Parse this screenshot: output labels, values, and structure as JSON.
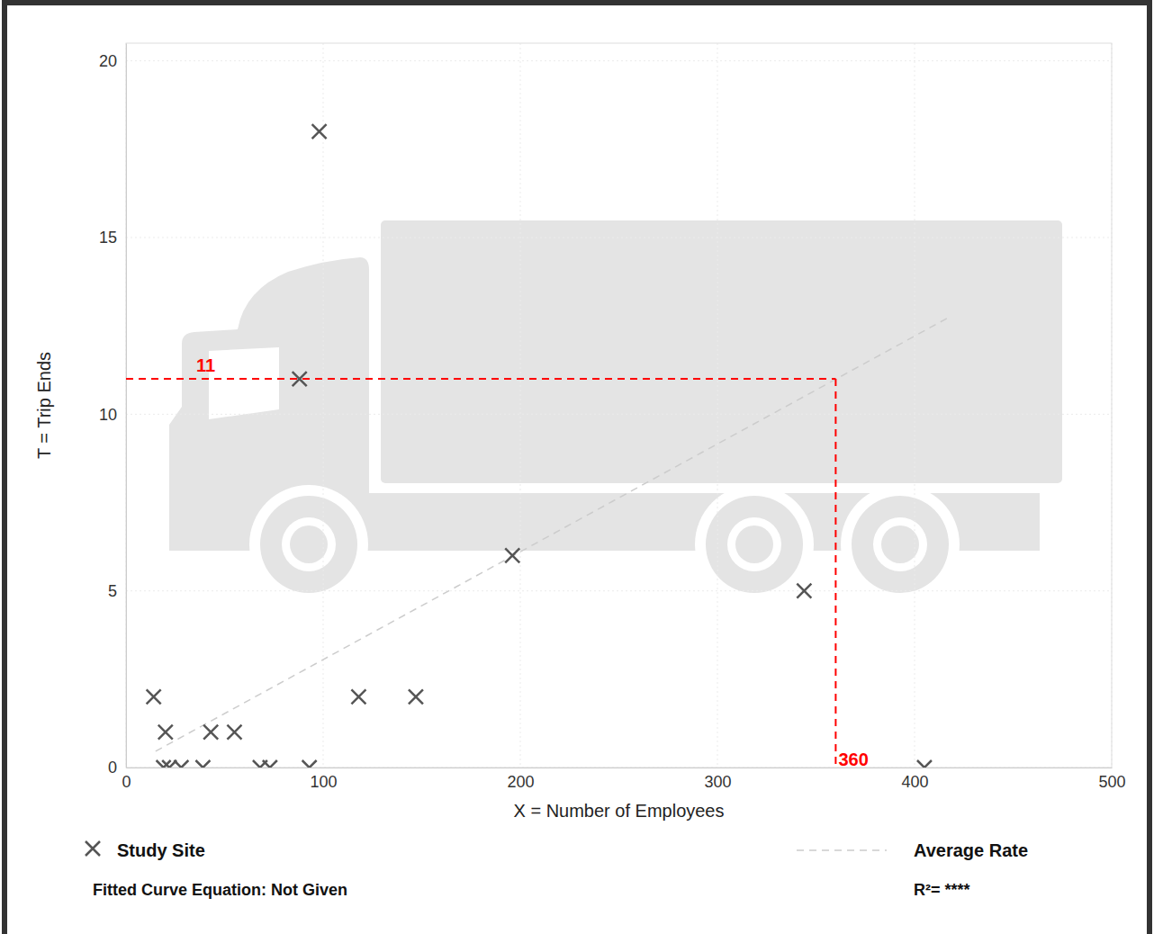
{
  "chart_data": {
    "type": "scatter",
    "x_label": "X = Number of Employees",
    "y_label": "T = Trip Ends",
    "xlim": [
      0,
      500
    ],
    "xticks": [
      0,
      100,
      200,
      300,
      400,
      500
    ],
    "ylim": [
      0,
      20.5
    ],
    "yticks": [
      0,
      5,
      10,
      15,
      20
    ],
    "grid": true,
    "legend": "bottom",
    "series": [
      {
        "name": "Study Site",
        "type": "scatter",
        "marker": "x",
        "color": "#555555",
        "x": [
          14,
          20,
          19,
          22,
          28,
          39,
          43,
          55,
          68,
          73,
          93,
          88,
          98,
          118,
          147,
          196,
          344,
          405
        ],
        "values": [
          2,
          1,
          0,
          0,
          0,
          0,
          1,
          1,
          0,
          0,
          0,
          11,
          18,
          2,
          2,
          6,
          5,
          0
        ]
      },
      {
        "name": "Average Rate",
        "type": "line",
        "line_style": "dashed",
        "color": "#cccccc",
        "x": [
          15,
          418
        ],
        "values": [
          0.46,
          12.76
        ]
      }
    ],
    "annotations": [
      {
        "x": 360,
        "y": 11,
        "color": "#ff0000"
      }
    ],
    "notes": [
      "Fitted Curve Equation: Not Given",
      "R²= ****"
    ]
  }
}
